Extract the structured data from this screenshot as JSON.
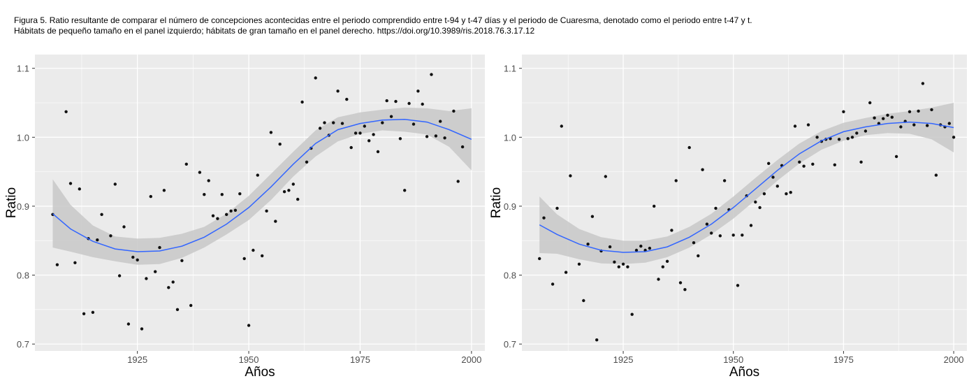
{
  "caption": {
    "line1": "Figura 5. Ratio resultante de comparar el número de concepciones acontecidas entre el periodo comprendido entre t-94 y t-47 días y el periodo de Cuaresma, denotado como el periodo entre t-47 y t.",
    "line2": "Hábitats de pequeño tamaño en el panel izquierdo; hábitats de gran tamaño en el panel derecho. https://doi.org/10.3989/ris.2018.76.3.17.12"
  },
  "colors": {
    "panel": "#ebebeb",
    "grid": "#ffffff",
    "points": "#111111",
    "smooth_line": "#3366ff",
    "ribbon": "#c8c8c8"
  },
  "chart_data": [
    {
      "type": "scatter",
      "title": "",
      "xlabel": "Años",
      "ylabel": "Ratio",
      "xlim": [
        1902,
        2003
      ],
      "ylim": [
        0.69,
        1.12
      ],
      "xticks": [
        1925,
        1950,
        1975,
        2000
      ],
      "xtick_labels": [
        "1925",
        "1950",
        "1975",
        "2000"
      ],
      "yticks": [
        0.7,
        0.8,
        0.9,
        1.0,
        1.1
      ],
      "ytick_labels": [
        "0.7",
        "0.8",
        "0.9",
        "1.0",
        "1.1"
      ],
      "grid": true,
      "legend": "none",
      "points": [
        [
          1906,
          0.888
        ],
        [
          1907,
          0.815
        ],
        [
          1909,
          1.037
        ],
        [
          1910,
          0.933
        ],
        [
          1911,
          0.818
        ],
        [
          1912,
          0.925
        ],
        [
          1913,
          0.744
        ],
        [
          1914,
          0.853
        ],
        [
          1915,
          0.746
        ],
        [
          1916,
          0.851
        ],
        [
          1917,
          0.888
        ],
        [
          1919,
          0.857
        ],
        [
          1920,
          0.932
        ],
        [
          1921,
          0.799
        ],
        [
          1922,
          0.87
        ],
        [
          1923,
          0.729
        ],
        [
          1924,
          0.826
        ],
        [
          1925,
          0.822
        ],
        [
          1926,
          0.722
        ],
        [
          1927,
          0.795
        ],
        [
          1928,
          0.914
        ],
        [
          1929,
          0.805
        ],
        [
          1930,
          0.84
        ],
        [
          1931,
          0.923
        ],
        [
          1932,
          0.782
        ],
        [
          1933,
          0.79
        ],
        [
          1934,
          0.75
        ],
        [
          1935,
          0.821
        ],
        [
          1936,
          0.961
        ],
        [
          1937,
          0.756
        ],
        [
          1939,
          0.949
        ],
        [
          1940,
          0.917
        ],
        [
          1941,
          0.937
        ],
        [
          1942,
          0.886
        ],
        [
          1943,
          0.882
        ],
        [
          1944,
          0.917
        ],
        [
          1945,
          0.888
        ],
        [
          1946,
          0.893
        ],
        [
          1947,
          0.894
        ],
        [
          1948,
          0.918
        ],
        [
          1949,
          0.824
        ],
        [
          1950,
          0.727
        ],
        [
          1951,
          0.836
        ],
        [
          1952,
          0.945
        ],
        [
          1953,
          0.828
        ],
        [
          1954,
          0.893
        ],
        [
          1955,
          1.007
        ],
        [
          1956,
          0.878
        ],
        [
          1957,
          0.99
        ],
        [
          1958,
          0.921
        ],
        [
          1959,
          0.923
        ],
        [
          1960,
          0.932
        ],
        [
          1961,
          0.91
        ],
        [
          1962,
          1.051
        ],
        [
          1963,
          0.964
        ],
        [
          1964,
          0.984
        ],
        [
          1965,
          1.086
        ],
        [
          1966,
          1.013
        ],
        [
          1967,
          1.021
        ],
        [
          1968,
          1.003
        ],
        [
          1969,
          1.021
        ],
        [
          1970,
          1.067
        ],
        [
          1971,
          1.02
        ],
        [
          1972,
          1.055
        ],
        [
          1973,
          0.985
        ],
        [
          1974,
          1.006
        ],
        [
          1975,
          1.006
        ],
        [
          1976,
          1.016
        ],
        [
          1977,
          0.995
        ],
        [
          1978,
          1.004
        ],
        [
          1979,
          0.979
        ],
        [
          1980,
          1.021
        ],
        [
          1981,
          1.053
        ],
        [
          1982,
          1.03
        ],
        [
          1983,
          1.052
        ],
        [
          1984,
          0.998
        ],
        [
          1985,
          0.923
        ],
        [
          1986,
          1.049
        ],
        [
          1987,
          1.019
        ],
        [
          1988,
          1.067
        ],
        [
          1989,
          1.048
        ],
        [
          1990,
          1.001
        ],
        [
          1991,
          1.091
        ],
        [
          1992,
          1.002
        ],
        [
          1993,
          1.023
        ],
        [
          1994,
          0.999
        ],
        [
          1996,
          1.038
        ],
        [
          1997,
          0.936
        ],
        [
          1998,
          0.986
        ]
      ],
      "smooth": [
        [
          1906,
          0.889
        ],
        [
          1910,
          0.867
        ],
        [
          1915,
          0.849
        ],
        [
          1920,
          0.838
        ],
        [
          1925,
          0.834
        ],
        [
          1930,
          0.835
        ],
        [
          1935,
          0.842
        ],
        [
          1940,
          0.855
        ],
        [
          1945,
          0.874
        ],
        [
          1950,
          0.898
        ],
        [
          1955,
          0.928
        ],
        [
          1960,
          0.961
        ],
        [
          1965,
          0.991
        ],
        [
          1970,
          1.011
        ],
        [
          1975,
          1.02
        ],
        [
          1980,
          1.025
        ],
        [
          1985,
          1.026
        ],
        [
          1990,
          1.022
        ],
        [
          1995,
          1.011
        ],
        [
          2000,
          0.997
        ]
      ],
      "ribbon_lower": [
        [
          1906,
          0.84
        ],
        [
          1910,
          0.834
        ],
        [
          1915,
          0.826
        ],
        [
          1920,
          0.82
        ],
        [
          1925,
          0.815
        ],
        [
          1930,
          0.816
        ],
        [
          1935,
          0.825
        ],
        [
          1940,
          0.84
        ],
        [
          1945,
          0.859
        ],
        [
          1950,
          0.88
        ],
        [
          1955,
          0.909
        ],
        [
          1960,
          0.943
        ],
        [
          1965,
          0.972
        ],
        [
          1970,
          0.994
        ],
        [
          1975,
          1.005
        ],
        [
          1980,
          1.01
        ],
        [
          1985,
          1.008
        ],
        [
          1990,
          1.004
        ],
        [
          1995,
          0.986
        ],
        [
          2000,
          0.952
        ]
      ],
      "ribbon_upper": [
        [
          1906,
          0.939
        ],
        [
          1910,
          0.902
        ],
        [
          1915,
          0.872
        ],
        [
          1920,
          0.856
        ],
        [
          1925,
          0.853
        ],
        [
          1930,
          0.854
        ],
        [
          1935,
          0.86
        ],
        [
          1940,
          0.87
        ],
        [
          1945,
          0.889
        ],
        [
          1950,
          0.915
        ],
        [
          1955,
          0.947
        ],
        [
          1960,
          0.979
        ],
        [
          1965,
          1.01
        ],
        [
          1970,
          1.029
        ],
        [
          1975,
          1.036
        ],
        [
          1980,
          1.04
        ],
        [
          1985,
          1.043
        ],
        [
          1990,
          1.042
        ],
        [
          1995,
          1.038
        ],
        [
          2000,
          1.042
        ]
      ]
    },
    {
      "type": "scatter",
      "title": "",
      "xlabel": "Años",
      "ylabel": "Ratio",
      "xlim": [
        1902,
        2003
      ],
      "ylim": [
        0.69,
        1.12
      ],
      "xticks": [
        1925,
        1950,
        1975,
        2000
      ],
      "xtick_labels": [
        "1925",
        "1950",
        "1975",
        "2000"
      ],
      "yticks": [
        0.7,
        0.8,
        0.9,
        1.0,
        1.1
      ],
      "ytick_labels": [
        "0.7",
        "0.8",
        "0.9",
        "1.0",
        "1.1"
      ],
      "grid": true,
      "legend": "none",
      "points": [
        [
          1906,
          0.824
        ],
        [
          1907,
          0.883
        ],
        [
          1909,
          0.787
        ],
        [
          1910,
          0.897
        ],
        [
          1911,
          1.016
        ],
        [
          1912,
          0.804
        ],
        [
          1913,
          0.944
        ],
        [
          1915,
          0.816
        ],
        [
          1916,
          0.763
        ],
        [
          1917,
          0.845
        ],
        [
          1918,
          0.885
        ],
        [
          1919,
          0.706
        ],
        [
          1920,
          0.835
        ],
        [
          1921,
          0.943
        ],
        [
          1922,
          0.841
        ],
        [
          1923,
          0.819
        ],
        [
          1924,
          0.812
        ],
        [
          1925,
          0.816
        ],
        [
          1926,
          0.812
        ],
        [
          1927,
          0.743
        ],
        [
          1928,
          0.836
        ],
        [
          1929,
          0.842
        ],
        [
          1930,
          0.836
        ],
        [
          1931,
          0.839
        ],
        [
          1932,
          0.9
        ],
        [
          1933,
          0.794
        ],
        [
          1934,
          0.812
        ],
        [
          1935,
          0.82
        ],
        [
          1936,
          0.865
        ],
        [
          1937,
          0.937
        ],
        [
          1938,
          0.789
        ],
        [
          1939,
          0.779
        ],
        [
          1940,
          0.985
        ],
        [
          1941,
          0.847
        ],
        [
          1942,
          0.828
        ],
        [
          1943,
          0.953
        ],
        [
          1944,
          0.874
        ],
        [
          1945,
          0.861
        ],
        [
          1946,
          0.897
        ],
        [
          1947,
          0.857
        ],
        [
          1948,
          0.937
        ],
        [
          1949,
          0.895
        ],
        [
          1950,
          0.858
        ],
        [
          1951,
          0.785
        ],
        [
          1952,
          0.858
        ],
        [
          1953,
          0.915
        ],
        [
          1954,
          0.872
        ],
        [
          1955,
          0.906
        ],
        [
          1956,
          0.898
        ],
        [
          1957,
          0.918
        ],
        [
          1958,
          0.962
        ],
        [
          1959,
          0.942
        ],
        [
          1960,
          0.929
        ],
        [
          1961,
          0.959
        ],
        [
          1962,
          0.918
        ],
        [
          1963,
          0.92
        ],
        [
          1964,
          1.016
        ],
        [
          1965,
          0.964
        ],
        [
          1966,
          0.958
        ],
        [
          1967,
          1.018
        ],
        [
          1968,
          0.961
        ],
        [
          1969,
          1.0
        ],
        [
          1970,
          0.994
        ],
        [
          1971,
          0.997
        ],
        [
          1972,
          0.998
        ],
        [
          1973,
          0.96
        ],
        [
          1974,
          0.997
        ],
        [
          1975,
          1.037
        ],
        [
          1976,
          0.998
        ],
        [
          1977,
          1.0
        ],
        [
          1978,
          1.006
        ],
        [
          1979,
          0.964
        ],
        [
          1980,
          1.009
        ],
        [
          1981,
          1.05
        ],
        [
          1982,
          1.028
        ],
        [
          1983,
          1.02
        ],
        [
          1984,
          1.027
        ],
        [
          1985,
          1.032
        ],
        [
          1986,
          1.029
        ],
        [
          1987,
          0.972
        ],
        [
          1988,
          1.015
        ],
        [
          1989,
          1.023
        ],
        [
          1990,
          1.037
        ],
        [
          1991,
          1.018
        ],
        [
          1992,
          1.038
        ],
        [
          1993,
          1.078
        ],
        [
          1994,
          1.017
        ],
        [
          1995,
          1.04
        ],
        [
          1996,
          0.945
        ],
        [
          1997,
          1.018
        ],
        [
          1998,
          1.015
        ],
        [
          1999,
          1.02
        ],
        [
          2000,
          1.0
        ]
      ],
      "smooth": [
        [
          1906,
          0.873
        ],
        [
          1910,
          0.859
        ],
        [
          1915,
          0.845
        ],
        [
          1920,
          0.836
        ],
        [
          1925,
          0.833
        ],
        [
          1930,
          0.834
        ],
        [
          1935,
          0.841
        ],
        [
          1940,
          0.855
        ],
        [
          1945,
          0.874
        ],
        [
          1950,
          0.898
        ],
        [
          1955,
          0.925
        ],
        [
          1960,
          0.952
        ],
        [
          1965,
          0.976
        ],
        [
          1970,
          0.995
        ],
        [
          1975,
          1.008
        ],
        [
          1980,
          1.015
        ],
        [
          1985,
          1.02
        ],
        [
          1990,
          1.022
        ],
        [
          1995,
          1.02
        ],
        [
          2000,
          1.014
        ]
      ],
      "ribbon_lower": [
        [
          1906,
          0.832
        ],
        [
          1910,
          0.831
        ],
        [
          1915,
          0.823
        ],
        [
          1920,
          0.817
        ],
        [
          1925,
          0.816
        ],
        [
          1930,
          0.818
        ],
        [
          1935,
          0.826
        ],
        [
          1940,
          0.84
        ],
        [
          1945,
          0.859
        ],
        [
          1950,
          0.882
        ],
        [
          1955,
          0.909
        ],
        [
          1960,
          0.937
        ],
        [
          1965,
          0.962
        ],
        [
          1970,
          0.982
        ],
        [
          1975,
          0.995
        ],
        [
          1980,
          1.003
        ],
        [
          1985,
          1.006
        ],
        [
          1990,
          1.005
        ],
        [
          1995,
          0.997
        ],
        [
          2000,
          0.978
        ]
      ],
      "ribbon_upper": [
        [
          1906,
          0.914
        ],
        [
          1910,
          0.888
        ],
        [
          1915,
          0.867
        ],
        [
          1920,
          0.855
        ],
        [
          1925,
          0.85
        ],
        [
          1930,
          0.85
        ],
        [
          1935,
          0.856
        ],
        [
          1940,
          0.87
        ],
        [
          1945,
          0.889
        ],
        [
          1950,
          0.914
        ],
        [
          1955,
          0.941
        ],
        [
          1960,
          0.967
        ],
        [
          1965,
          0.991
        ],
        [
          1970,
          1.009
        ],
        [
          1975,
          1.021
        ],
        [
          1980,
          1.028
        ],
        [
          1985,
          1.034
        ],
        [
          1990,
          1.038
        ],
        [
          1995,
          1.043
        ],
        [
          2000,
          1.05
        ]
      ]
    }
  ]
}
